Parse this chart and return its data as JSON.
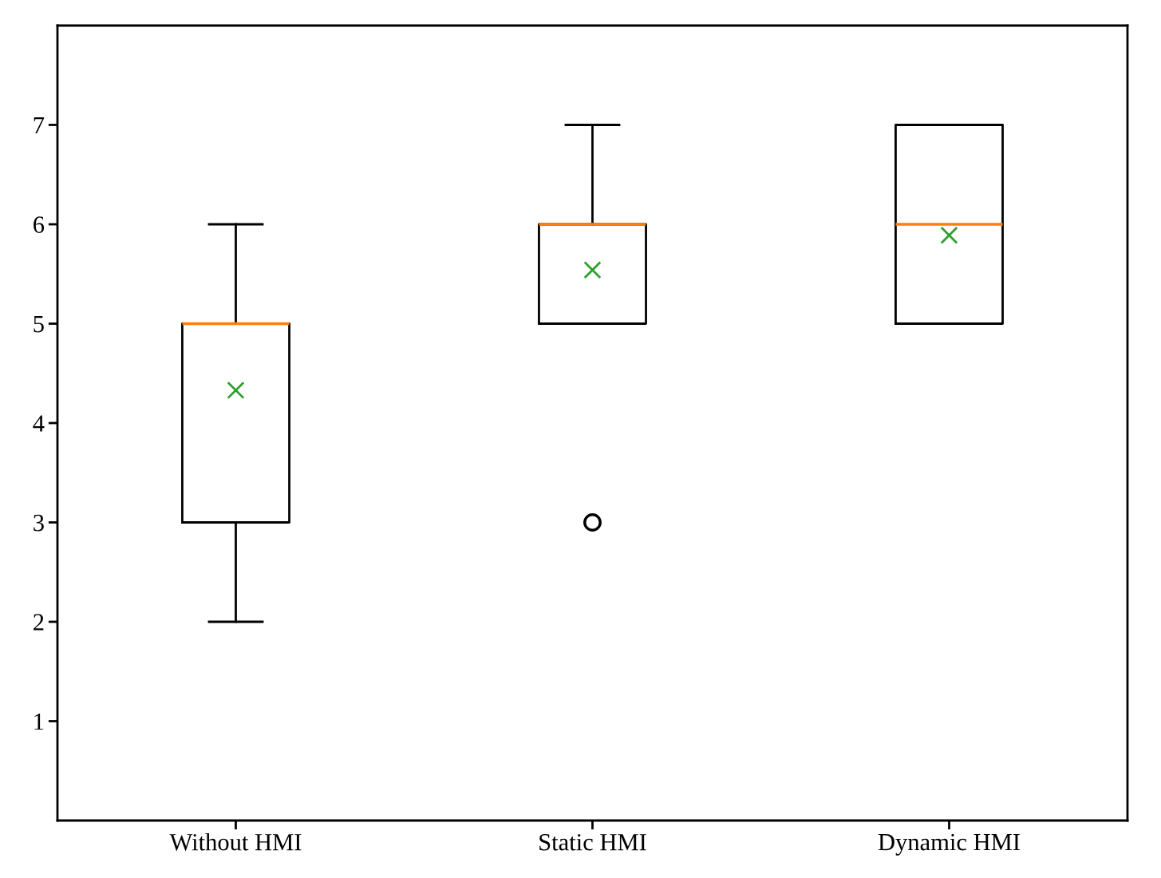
{
  "chart_data": {
    "type": "box",
    "categories": [
      "Without HMI",
      "Static HMI",
      "Dynamic HMI"
    ],
    "boxes": [
      {
        "low": 2,
        "q1": 3,
        "median": 5,
        "q3": 5,
        "high": 6,
        "mean": 4.33
      },
      {
        "low": 5,
        "q1": 5,
        "median": 6,
        "q3": 6,
        "high": 7,
        "mean": 5.54,
        "outliers": [
          3
        ]
      },
      {
        "low": 5,
        "q1": 5,
        "median": 6,
        "q3": 7,
        "high": 7,
        "mean": 5.89
      }
    ],
    "ylim": [
      0,
      8
    ],
    "yticks": [
      1,
      2,
      3,
      4,
      5,
      6,
      7
    ],
    "grid": false
  }
}
